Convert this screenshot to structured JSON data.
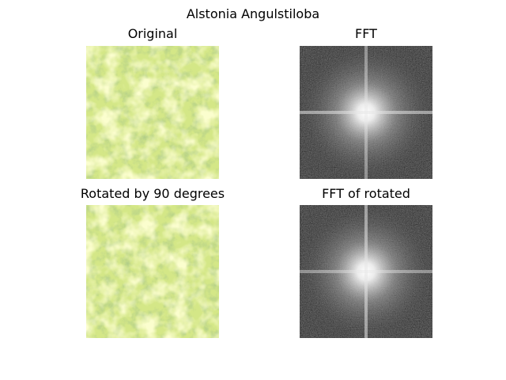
{
  "figure": {
    "title": "Alstonia Angulstiloba"
  },
  "panels": {
    "original": {
      "title": "Original",
      "image": "foliage-photo"
    },
    "fft": {
      "title": "FFT",
      "image": "fft-magnitude-spectrum"
    },
    "rotated": {
      "title": "Rotated by 90 degrees",
      "image": "foliage-photo-rotated"
    },
    "fft_rotated": {
      "title": "FFT of rotated",
      "image": "fft-magnitude-spectrum-rotated"
    }
  },
  "colors": {
    "foliage_light": "#eef79a",
    "foliage_mid": "#c9e27a",
    "foliage_dark": "#7fa84a",
    "fft_dark": "#2b2b2b",
    "fft_bright": "#ffffff"
  }
}
